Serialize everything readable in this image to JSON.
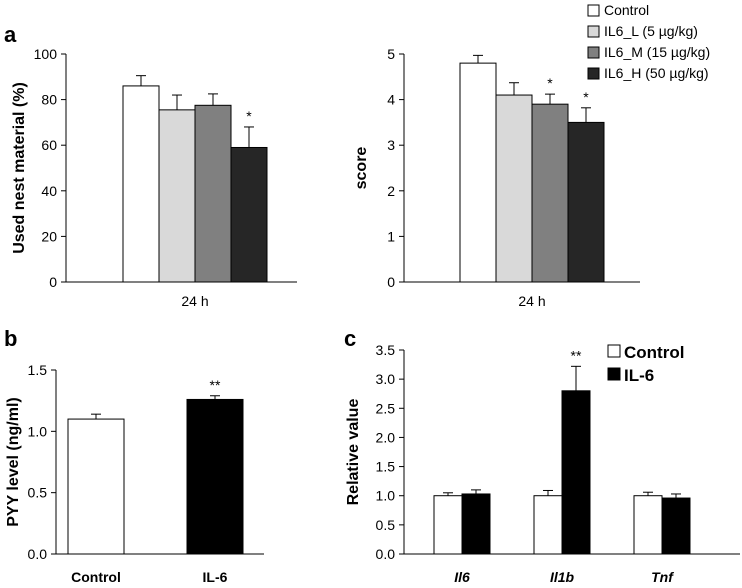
{
  "panels": {
    "a": {
      "label": "a",
      "legend": [
        "Control",
        "IL6_L (5 µg/kg)",
        "IL6_M (15 µg/kg)",
        "IL6_H (50 µg/kg)"
      ],
      "colors": [
        "#ffffff",
        "#d9d9d9",
        "#808080",
        "#262626"
      ]
    },
    "b": {
      "label": "b"
    },
    "c": {
      "label": "c",
      "legend": [
        "Control",
        "IL-6"
      ],
      "colors": [
        "#ffffff",
        "#000000"
      ]
    }
  },
  "chart_data": [
    {
      "id": "a1",
      "type": "bar",
      "ylabel": "Used nest material  (%)",
      "categories": [
        "24 h"
      ],
      "ylim": [
        0,
        100
      ],
      "yticks": [
        "0",
        "20",
        "40",
        "60",
        "80",
        "100"
      ],
      "series": [
        {
          "name": "Control",
          "values": [
            86
          ],
          "errors": [
            4.5
          ],
          "sig": [
            ""
          ]
        },
        {
          "name": "IL6_L (5 µg/kg)",
          "values": [
            75.5
          ],
          "errors": [
            6.5
          ],
          "sig": [
            ""
          ]
        },
        {
          "name": "IL6_M (15 µg/kg)",
          "values": [
            77.5
          ],
          "errors": [
            5
          ],
          "sig": [
            ""
          ]
        },
        {
          "name": "IL6_H (50 µg/kg)",
          "values": [
            59
          ],
          "errors": [
            9
          ],
          "sig": [
            "*"
          ]
        }
      ]
    },
    {
      "id": "a2",
      "type": "bar",
      "ylabel": "score",
      "categories": [
        "24 h"
      ],
      "ylim": [
        0,
        5
      ],
      "yticks": [
        "0",
        "1",
        "2",
        "3",
        "4",
        "5"
      ],
      "series": [
        {
          "name": "Control",
          "values": [
            4.8
          ],
          "errors": [
            0.17
          ],
          "sig": [
            ""
          ]
        },
        {
          "name": "IL6_L (5 µg/kg)",
          "values": [
            4.1
          ],
          "errors": [
            0.27
          ],
          "sig": [
            ""
          ]
        },
        {
          "name": "IL6_M (15 µg/kg)",
          "values": [
            3.9
          ],
          "errors": [
            0.22
          ],
          "sig": [
            "*"
          ]
        },
        {
          "name": "IL6_H (50 µg/kg)",
          "values": [
            3.5
          ],
          "errors": [
            0.32
          ],
          "sig": [
            "*"
          ]
        }
      ]
    },
    {
      "id": "b",
      "type": "bar",
      "ylabel": "PYY level (ng/ml)",
      "categories": [
        "Control",
        "IL-6"
      ],
      "ylim": [
        0,
        1.5
      ],
      "yticks": [
        "0.0",
        "0.5",
        "1.0",
        "1.5"
      ],
      "series": [
        {
          "name": "PYY",
          "values": [
            1.1,
            1.26
          ],
          "errors": [
            0.04,
            0.03
          ],
          "sig": [
            "",
            "**"
          ]
        }
      ]
    },
    {
      "id": "c",
      "type": "bar",
      "ylabel": "Relative value",
      "categories": [
        "Il6",
        "Il1b",
        "Tnf"
      ],
      "ylim": [
        0,
        3.5
      ],
      "yticks": [
        "0.0",
        "0.5",
        "1.0",
        "1.5",
        "2.0",
        "2.5",
        "3.0",
        "3.5"
      ],
      "series": [
        {
          "name": "Control",
          "values": [
            1.0,
            1.0,
            1.0
          ],
          "errors": [
            0.05,
            0.09,
            0.06
          ],
          "sig": [
            "",
            "",
            ""
          ]
        },
        {
          "name": "IL-6",
          "values": [
            1.03,
            2.8,
            0.96
          ],
          "errors": [
            0.07,
            0.42,
            0.07
          ],
          "sig": [
            "",
            "**",
            ""
          ]
        }
      ]
    }
  ]
}
